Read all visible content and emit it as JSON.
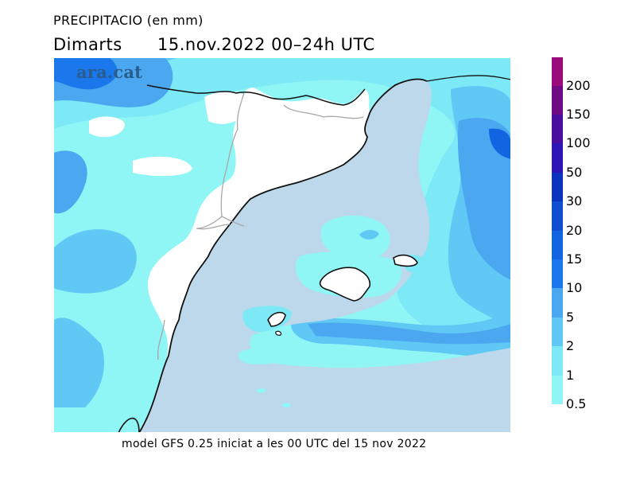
{
  "header": {
    "title": "PRECIPITACIO (en mm)",
    "day": "Dimarts",
    "date_range": "15.nov.2022 00–24h UTC"
  },
  "map": {
    "brand": "ara.cat",
    "colors": {
      "sea": "#bcd8ea",
      "land_nodata": "#ffffff",
      "border": "#111111",
      "admin_border": "#a8a8a8"
    }
  },
  "legend": {
    "levels": [
      {
        "label": "0.5",
        "color": "#8ff5f5"
      },
      {
        "label": "1",
        "color": "#7ee9f6"
      },
      {
        "label": "2",
        "color": "#5fc8f5"
      },
      {
        "label": "5",
        "color": "#4aa7f0"
      },
      {
        "label": "10",
        "color": "#1a77ec"
      },
      {
        "label": "15",
        "color": "#1264e0"
      },
      {
        "label": "20",
        "color": "#0f4ecf"
      },
      {
        "label": "30",
        "color": "#0b33bd"
      },
      {
        "label": "50",
        "color": "#2d16b5"
      },
      {
        "label": "100",
        "color": "#4a0e9e"
      },
      {
        "label": "150",
        "color": "#6e0a84"
      },
      {
        "label": "200",
        "color": "#9a0a7c"
      },
      {
        "label": "",
        "color": "#cc1aa6"
      }
    ]
  },
  "footer": {
    "model_note": "model GFS 0.25 iniciat a les 00 UTC del 15 nov 2022"
  }
}
